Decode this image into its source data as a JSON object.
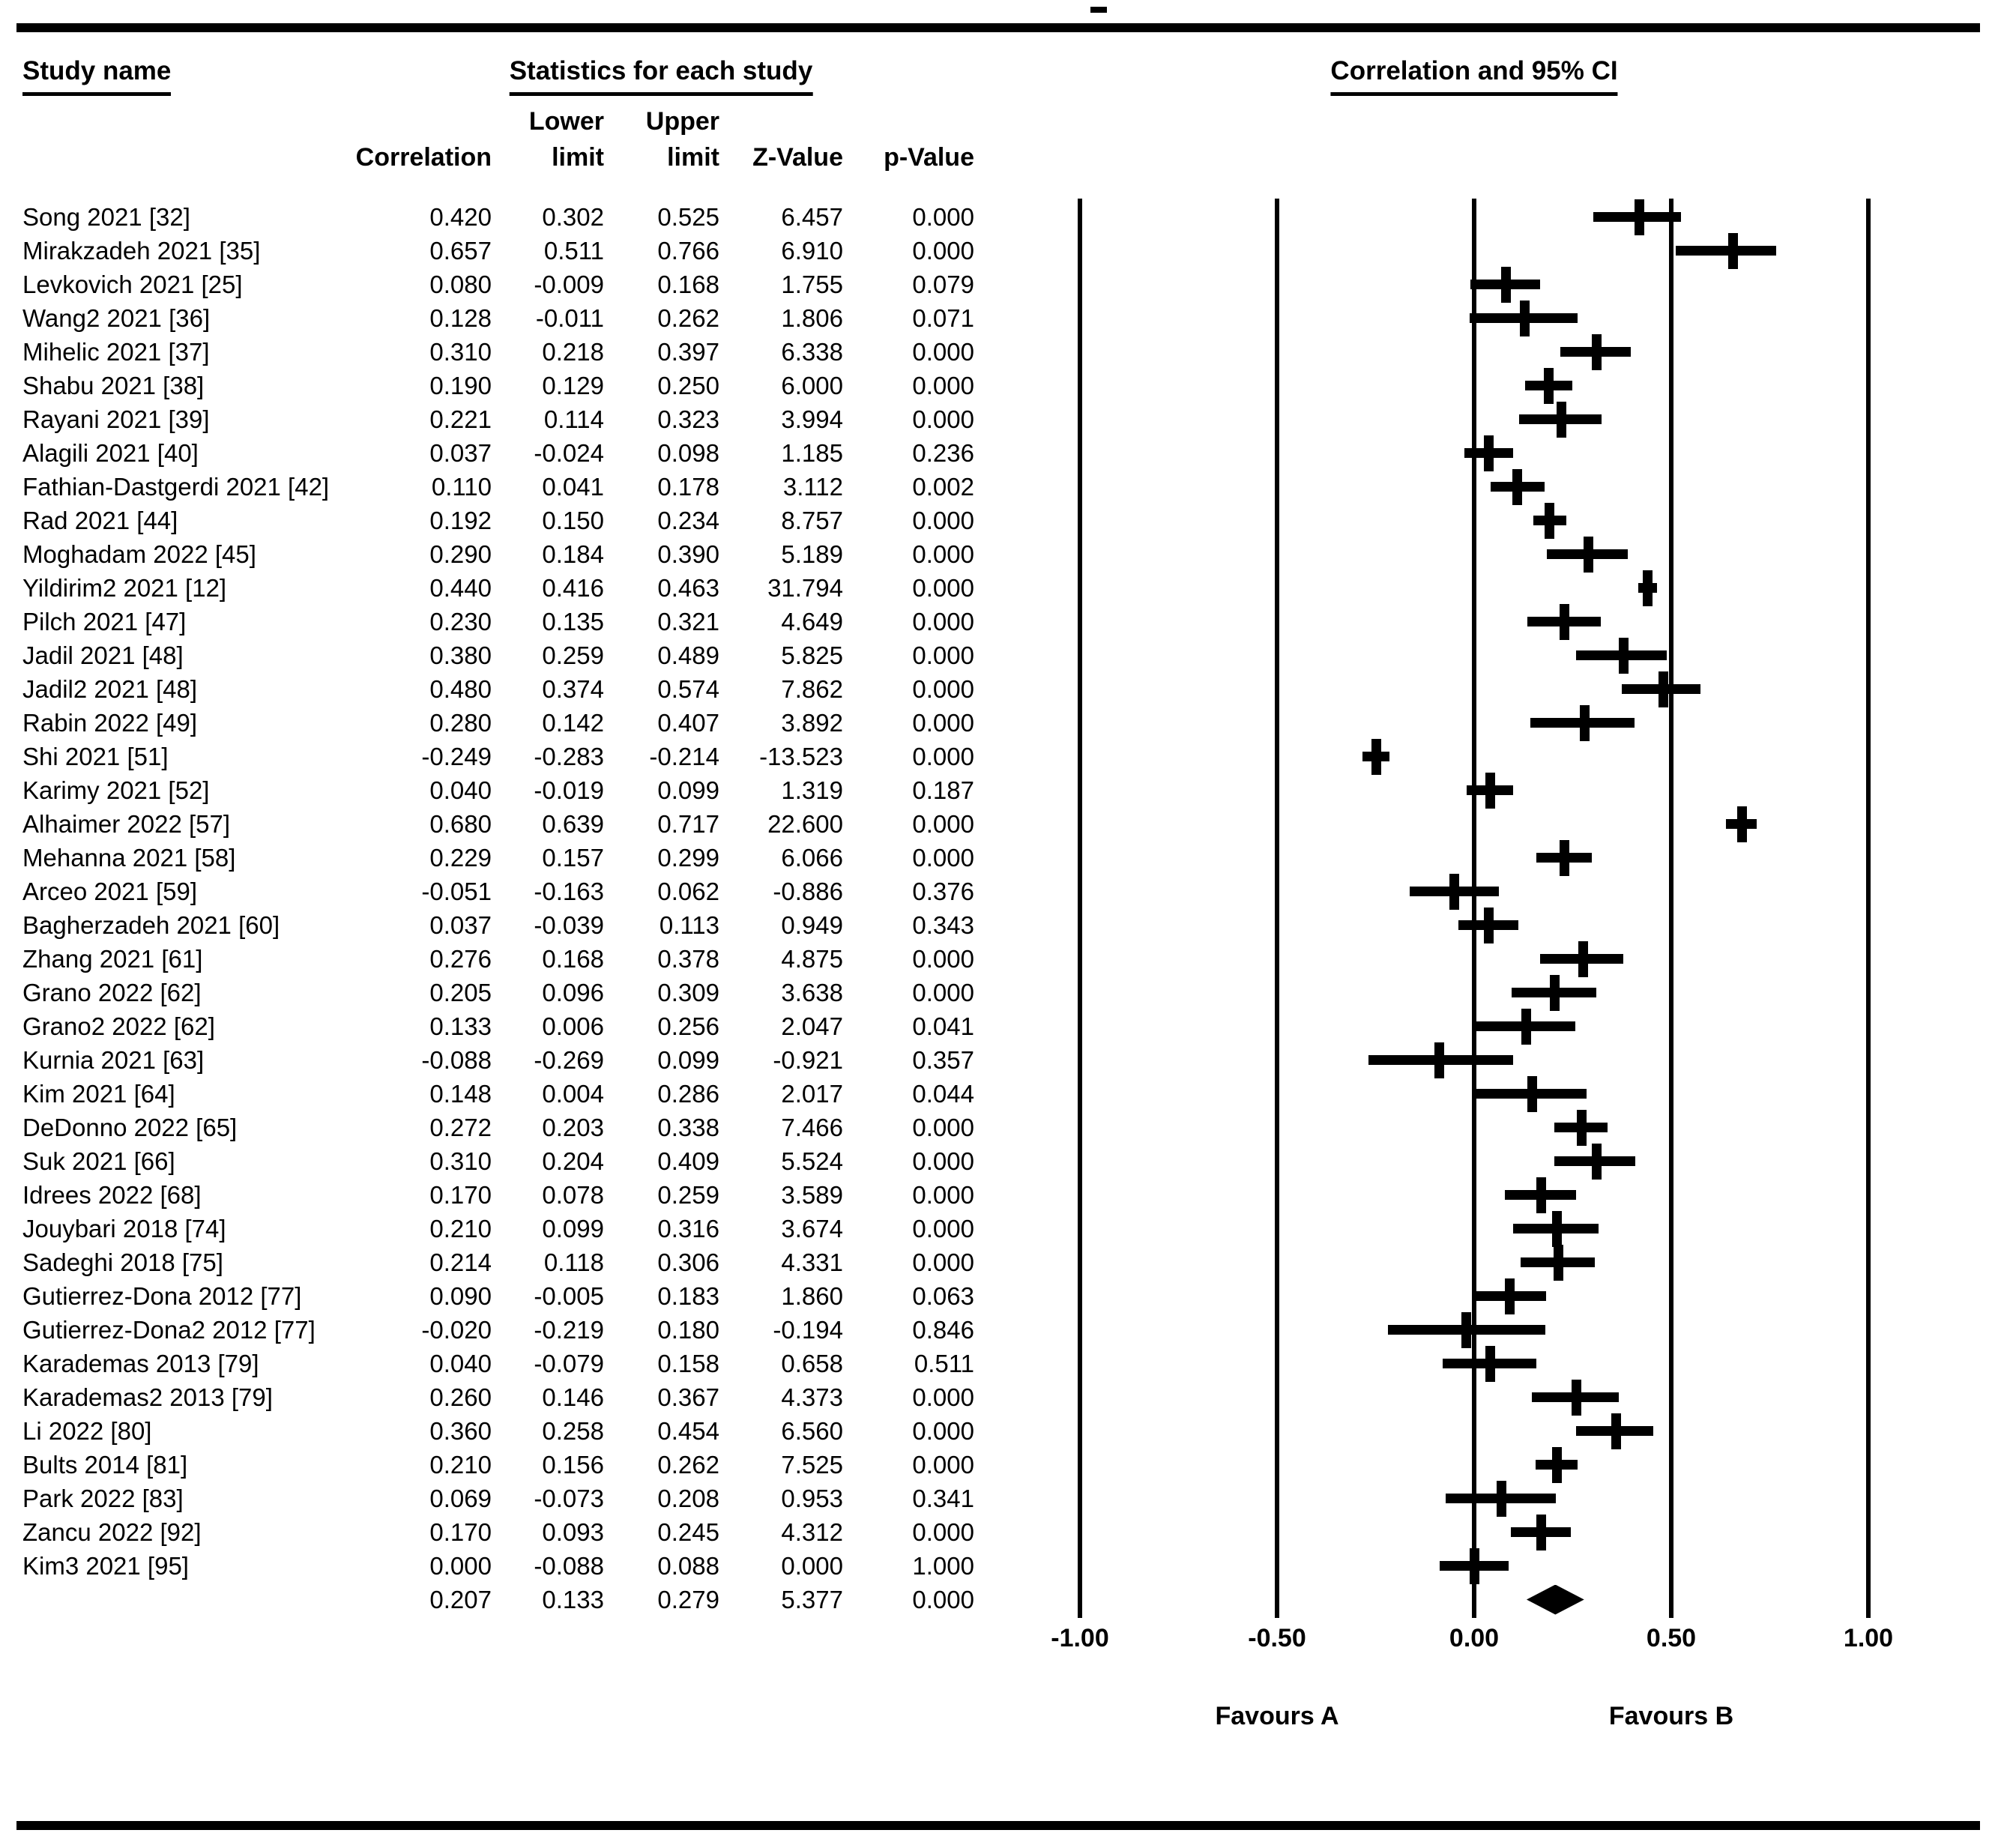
{
  "page": {
    "background_color": "#ffffff",
    "ink_color": "#000000"
  },
  "headers": {
    "study_name": "Study name",
    "statistics": "Statistics for each study",
    "ci": "Correlation and 95% CI",
    "correlation": "Correlation",
    "lower": "Lower",
    "upper": "Upper",
    "limit": "limit",
    "z_value": "Z-Value",
    "p_value": "p-Value"
  },
  "axis": {
    "tick_labels": [
      "-1.00",
      "-0.50",
      "0.00",
      "0.50",
      "1.00"
    ],
    "favours_a": "Favours A",
    "favours_b": "Favours B"
  },
  "chart_data": {
    "type": "scatter",
    "variant": "forest-plot",
    "title": "Correlation and 95% CI",
    "columns": [
      "Correlation",
      "Lower limit",
      "Upper limit",
      "Z-Value",
      "p-Value"
    ],
    "x_axis": {
      "min": -1.0,
      "max": 1.0,
      "ticks": [
        -1.0,
        -0.5,
        0.0,
        0.5,
        1.0
      ],
      "tick_labels": [
        "-1.00",
        "-0.50",
        "0.00",
        "0.50",
        "1.00"
      ],
      "label_left": "Favours A",
      "label_right": "Favours B",
      "gridlines": true
    },
    "series": [
      {
        "name": "Song 2021 [32]",
        "correlation": 0.42,
        "lower": 0.302,
        "upper": 0.525,
        "z": 6.457,
        "p": 0.0
      },
      {
        "name": "Mirakzadeh 2021 [35]",
        "correlation": 0.657,
        "lower": 0.511,
        "upper": 0.766,
        "z": 6.91,
        "p": 0.0
      },
      {
        "name": "Levkovich 2021 [25]",
        "correlation": 0.08,
        "lower": -0.009,
        "upper": 0.168,
        "z": 1.755,
        "p": 0.079
      },
      {
        "name": "Wang2 2021 [36]",
        "correlation": 0.128,
        "lower": -0.011,
        "upper": 0.262,
        "z": 1.806,
        "p": 0.071
      },
      {
        "name": "Mihelic 2021 [37]",
        "correlation": 0.31,
        "lower": 0.218,
        "upper": 0.397,
        "z": 6.338,
        "p": 0.0
      },
      {
        "name": "Shabu 2021 [38]",
        "correlation": 0.19,
        "lower": 0.129,
        "upper": 0.25,
        "z": 6.0,
        "p": 0.0
      },
      {
        "name": "Rayani 2021 [39]",
        "correlation": 0.221,
        "lower": 0.114,
        "upper": 0.323,
        "z": 3.994,
        "p": 0.0
      },
      {
        "name": "Alagili 2021 [40]",
        "correlation": 0.037,
        "lower": -0.024,
        "upper": 0.098,
        "z": 1.185,
        "p": 0.236
      },
      {
        "name": "Fathian-Dastgerdi 2021 [42]",
        "correlation": 0.11,
        "lower": 0.041,
        "upper": 0.178,
        "z": 3.112,
        "p": 0.002
      },
      {
        "name": "Rad 2021 [44]",
        "correlation": 0.192,
        "lower": 0.15,
        "upper": 0.234,
        "z": 8.757,
        "p": 0.0
      },
      {
        "name": "Moghadam 2022 [45]",
        "correlation": 0.29,
        "lower": 0.184,
        "upper": 0.39,
        "z": 5.189,
        "p": 0.0
      },
      {
        "name": "Yildirim2 2021 [12]",
        "correlation": 0.44,
        "lower": 0.416,
        "upper": 0.463,
        "z": 31.794,
        "p": 0.0
      },
      {
        "name": "Pilch 2021 [47]",
        "correlation": 0.23,
        "lower": 0.135,
        "upper": 0.321,
        "z": 4.649,
        "p": 0.0
      },
      {
        "name": "Jadil 2021 [48]",
        "correlation": 0.38,
        "lower": 0.259,
        "upper": 0.489,
        "z": 5.825,
        "p": 0.0
      },
      {
        "name": "Jadil2 2021 [48]",
        "correlation": 0.48,
        "lower": 0.374,
        "upper": 0.574,
        "z": 7.862,
        "p": 0.0
      },
      {
        "name": "Rabin 2022 [49]",
        "correlation": 0.28,
        "lower": 0.142,
        "upper": 0.407,
        "z": 3.892,
        "p": 0.0
      },
      {
        "name": "Shi 2021 [51]",
        "correlation": -0.249,
        "lower": -0.283,
        "upper": -0.214,
        "z": -13.523,
        "p": 0.0
      },
      {
        "name": "Karimy 2021 [52]",
        "correlation": 0.04,
        "lower": -0.019,
        "upper": 0.099,
        "z": 1.319,
        "p": 0.187
      },
      {
        "name": "Alhaimer 2022 [57]",
        "correlation": 0.68,
        "lower": 0.639,
        "upper": 0.717,
        "z": 22.6,
        "p": 0.0
      },
      {
        "name": "Mehanna 2021 [58]",
        "correlation": 0.229,
        "lower": 0.157,
        "upper": 0.299,
        "z": 6.066,
        "p": 0.0
      },
      {
        "name": "Arceo 2021 [59]",
        "correlation": -0.051,
        "lower": -0.163,
        "upper": 0.062,
        "z": -0.886,
        "p": 0.376
      },
      {
        "name": "Bagherzadeh 2021 [60]",
        "correlation": 0.037,
        "lower": -0.039,
        "upper": 0.113,
        "z": 0.949,
        "p": 0.343
      },
      {
        "name": "Zhang 2021 [61]",
        "correlation": 0.276,
        "lower": 0.168,
        "upper": 0.378,
        "z": 4.875,
        "p": 0.0
      },
      {
        "name": "Grano 2022 [62]",
        "correlation": 0.205,
        "lower": 0.096,
        "upper": 0.309,
        "z": 3.638,
        "p": 0.0
      },
      {
        "name": "Grano2 2022 [62]",
        "correlation": 0.133,
        "lower": 0.006,
        "upper": 0.256,
        "z": 2.047,
        "p": 0.041
      },
      {
        "name": "Kurnia 2021 [63]",
        "correlation": -0.088,
        "lower": -0.269,
        "upper": 0.099,
        "z": -0.921,
        "p": 0.357
      },
      {
        "name": "Kim 2021 [64]",
        "correlation": 0.148,
        "lower": 0.004,
        "upper": 0.286,
        "z": 2.017,
        "p": 0.044
      },
      {
        "name": "DeDonno 2022 [65]",
        "correlation": 0.272,
        "lower": 0.203,
        "upper": 0.338,
        "z": 7.466,
        "p": 0.0
      },
      {
        "name": "Suk 2021 [66]",
        "correlation": 0.31,
        "lower": 0.204,
        "upper": 0.409,
        "z": 5.524,
        "p": 0.0
      },
      {
        "name": "Idrees 2022 [68]",
        "correlation": 0.17,
        "lower": 0.078,
        "upper": 0.259,
        "z": 3.589,
        "p": 0.0
      },
      {
        "name": "Jouybari 2018 [74]",
        "correlation": 0.21,
        "lower": 0.099,
        "upper": 0.316,
        "z": 3.674,
        "p": 0.0
      },
      {
        "name": "Sadeghi 2018 [75]",
        "correlation": 0.214,
        "lower": 0.118,
        "upper": 0.306,
        "z": 4.331,
        "p": 0.0
      },
      {
        "name": "Gutierrez-Dona 2012 [77]",
        "correlation": 0.09,
        "lower": -0.005,
        "upper": 0.183,
        "z": 1.86,
        "p": 0.063
      },
      {
        "name": "Gutierrez-Dona2 2012 [77]",
        "correlation": -0.02,
        "lower": -0.219,
        "upper": 0.18,
        "z": -0.194,
        "p": 0.846
      },
      {
        "name": "Karademas 2013 [79]",
        "correlation": 0.04,
        "lower": -0.079,
        "upper": 0.158,
        "z": 0.658,
        "p": 0.511
      },
      {
        "name": "Karademas2 2013 [79]",
        "correlation": 0.26,
        "lower": 0.146,
        "upper": 0.367,
        "z": 4.373,
        "p": 0.0
      },
      {
        "name": "Li 2022 [80]",
        "correlation": 0.36,
        "lower": 0.258,
        "upper": 0.454,
        "z": 6.56,
        "p": 0.0
      },
      {
        "name": "Bults 2014 [81]",
        "correlation": 0.21,
        "lower": 0.156,
        "upper": 0.262,
        "z": 7.525,
        "p": 0.0
      },
      {
        "name": "Park 2022 [83]",
        "correlation": 0.069,
        "lower": -0.073,
        "upper": 0.208,
        "z": 0.953,
        "p": 0.341
      },
      {
        "name": "Zancu 2022 [92]",
        "correlation": 0.17,
        "lower": 0.093,
        "upper": 0.245,
        "z": 4.312,
        "p": 0.0
      },
      {
        "name": "Kim3 2021 [95]",
        "correlation": 0.0,
        "lower": -0.088,
        "upper": 0.088,
        "z": 0.0,
        "p": 1.0
      }
    ],
    "summary": {
      "name": "",
      "correlation": 0.207,
      "lower": 0.133,
      "upper": 0.279,
      "z": 5.377,
      "p": 0.0,
      "marker": "diamond"
    }
  }
}
